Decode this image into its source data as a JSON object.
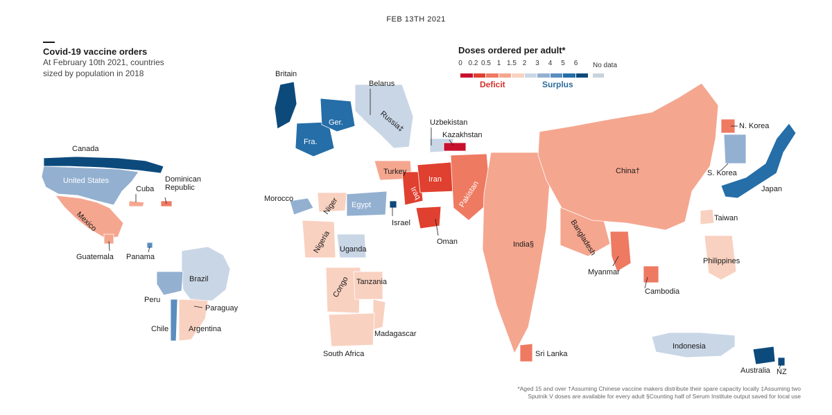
{
  "date": "FEB 13TH 2021",
  "title": "Covid-19 vaccine orders",
  "subtitle_lines": [
    "At February 10th 2021, countries",
    "sized by population in 2018"
  ],
  "legend": {
    "title": "Doses ordered per adult*",
    "ticks": [
      "0",
      "0.2",
      "0.5",
      "1",
      "1.5",
      "2",
      "3",
      "4",
      "5",
      "6"
    ],
    "bins": [
      {
        "color": "#c8102e"
      },
      {
        "color": "#e0402f"
      },
      {
        "color": "#ee7a62"
      },
      {
        "color": "#f5a68f"
      },
      {
        "color": "#f9d1c0"
      },
      {
        "color": "#c9d6e6"
      },
      {
        "color": "#93b0d1"
      },
      {
        "color": "#5b8dbf"
      },
      {
        "color": "#256ea8"
      },
      {
        "color": "#0c4a7c"
      }
    ],
    "no_data_label": "No data",
    "no_data_color": "#c8d3dc",
    "deficit_label": "Deficit",
    "surplus_label": "Surplus",
    "deficit_color": "#d1322c",
    "surplus_color": "#2e6c9c"
  },
  "countries": [
    {
      "label": "Canada",
      "color": "#0c4a7c"
    },
    {
      "label": "United States",
      "color": "#93b0d1"
    },
    {
      "label": "Mexico",
      "color": "#f5a68f"
    },
    {
      "label": "Cuba",
      "color": "#f5a68f"
    },
    {
      "label": "Dominican Republic",
      "color": "#ee7a62"
    },
    {
      "label": "Guatemala",
      "color": "#f5a68f"
    },
    {
      "label": "Panama",
      "color": "#5b8dbf"
    },
    {
      "label": "Brazil",
      "color": "#c9d6e6"
    },
    {
      "label": "Peru",
      "color": "#93b0d1"
    },
    {
      "label": "Paraguay",
      "color": "#ee7a62"
    },
    {
      "label": "Chile",
      "color": "#5b8dbf"
    },
    {
      "label": "Argentina",
      "color": "#f9d1c0"
    },
    {
      "label": "Britain",
      "color": "#0c4a7c"
    },
    {
      "label": "Fra.",
      "color": "#256ea8"
    },
    {
      "label": "Ger.",
      "color": "#256ea8"
    },
    {
      "label": "Belarus",
      "color": "#c8102e"
    },
    {
      "label": "Russia‡",
      "color": "#c9d6e6"
    },
    {
      "label": "Turkey",
      "color": "#f5a68f"
    },
    {
      "label": "Morocco",
      "color": "#93b0d1"
    },
    {
      "label": "Niger",
      "color": "#f9d1c0"
    },
    {
      "label": "Egypt",
      "color": "#93b0d1"
    },
    {
      "label": "Israel",
      "color": "#0c4a7c"
    },
    {
      "label": "Iraq",
      "color": "#e0402f"
    },
    {
      "label": "Iran",
      "color": "#e0402f"
    },
    {
      "label": "Uzbekistan",
      "color": "#c9d6e6"
    },
    {
      "label": "Kazakhstan",
      "color": "#c8102e"
    },
    {
      "label": "Oman",
      "color": "#e0402f"
    },
    {
      "label": "Pakistan",
      "color": "#ee7a62"
    },
    {
      "label": "Nigeria",
      "color": "#f9d1c0"
    },
    {
      "label": "Uganda",
      "color": "#c9d6e6"
    },
    {
      "label": "Congo",
      "color": "#f9d1c0"
    },
    {
      "label": "Tanzania",
      "color": "#f9d1c0"
    },
    {
      "label": "Madagascar",
      "color": "#f9d1c0"
    },
    {
      "label": "South Africa",
      "color": "#f9d1c0"
    },
    {
      "label": "India§",
      "color": "#f5a68f"
    },
    {
      "label": "Sri Lanka",
      "color": "#ee7a62"
    },
    {
      "label": "Bangladesh",
      "color": "#f5a68f"
    },
    {
      "label": "Myanmar",
      "color": "#ee7a62"
    },
    {
      "label": "Cambodia",
      "color": "#ee7a62"
    },
    {
      "label": "China†",
      "color": "#f5a68f"
    },
    {
      "label": "N. Korea",
      "color": "#ee7a62"
    },
    {
      "label": "S. Korea",
      "color": "#93b0d1"
    },
    {
      "label": "Japan",
      "color": "#256ea8"
    },
    {
      "label": "Taiwan",
      "color": "#f9d1c0"
    },
    {
      "label": "Philippines",
      "color": "#f9d1c0"
    },
    {
      "label": "Indonesia",
      "color": "#c9d6e6"
    },
    {
      "label": "Australia",
      "color": "#0c4a7c"
    },
    {
      "label": "NZ",
      "color": "#0c4a7c"
    }
  ],
  "footnote_lines": [
    "*Aged 15 and over †Assuming Chinese vaccine makers distribute their spare capacity locally ‡Assuming two",
    "Sputnik V doses are available for every adult §Counting half of Serum Institute output saved for local use"
  ]
}
